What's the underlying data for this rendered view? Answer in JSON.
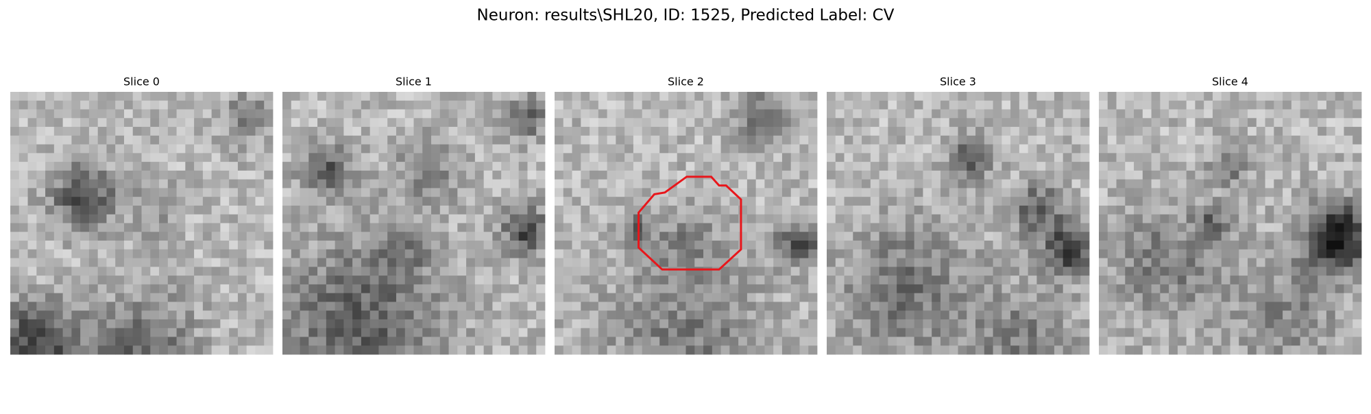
{
  "title": "Neuron: results\\SHL20, ID: 1525, Predicted Label: CV",
  "slices": [
    {
      "label": "Slice 0"
    },
    {
      "label": "Slice 1"
    },
    {
      "label": "Slice 2"
    },
    {
      "label": "Slice 3"
    },
    {
      "label": "Slice 4"
    }
  ]
}
